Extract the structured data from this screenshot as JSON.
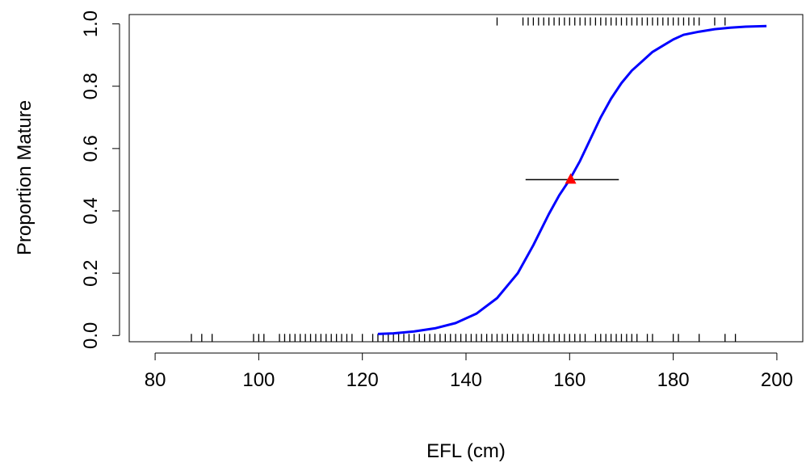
{
  "chart_data": {
    "type": "line",
    "title": "",
    "xlabel": "EFL (cm)",
    "ylabel": "Proportion Mature",
    "xlim": [
      75,
      205
    ],
    "ylim": [
      -0.02,
      1.03
    ],
    "x_ticks": [
      80,
      100,
      120,
      140,
      160,
      180,
      200
    ],
    "x_tick_labels": [
      "80",
      "100",
      "120",
      "140",
      "160",
      "180",
      "200"
    ],
    "y_ticks": [
      0,
      0.2,
      0.4,
      0.6,
      0.8,
      1.0
    ],
    "y_tick_labels": [
      "0.0",
      "0.2",
      "0.4",
      "0.6",
      "0.8",
      "1.0"
    ],
    "grid": false,
    "series": [
      {
        "type": "line",
        "color": "#0000ff",
        "x": [
          123,
          126,
          130,
          134,
          138,
          142,
          146,
          150,
          153,
          156,
          158,
          160,
          162,
          164,
          166,
          168,
          170,
          172,
          174,
          176,
          178,
          180,
          182,
          185,
          188,
          191,
          194,
          198
        ],
        "y": [
          0.005,
          0.007,
          0.013,
          0.023,
          0.04,
          0.07,
          0.12,
          0.2,
          0.29,
          0.39,
          0.45,
          0.5,
          0.56,
          0.63,
          0.7,
          0.76,
          0.81,
          0.85,
          0.88,
          0.91,
          0.93,
          0.95,
          0.965,
          0.975,
          0.983,
          0.988,
          0.991,
          0.993
        ]
      }
    ],
    "l50": {
      "x": 160.2,
      "y": 0.5,
      "ci": [
        151.5,
        169.5
      ],
      "marker": "triangle",
      "marker_color": "#ff0000",
      "line_color": "#000000"
    },
    "rug_immature": {
      "y": 0,
      "x": [
        87,
        89,
        91,
        99,
        100,
        101,
        104,
        105,
        106,
        107,
        108,
        109,
        110,
        111,
        112,
        113,
        114,
        115,
        116,
        117,
        118,
        120,
        122,
        123,
        124,
        125,
        126,
        127,
        128,
        129,
        130,
        131,
        132,
        133,
        134,
        135,
        136,
        137,
        138,
        139,
        140,
        141,
        142,
        143,
        144,
        145,
        146,
        147,
        148,
        149,
        150,
        151,
        152,
        153,
        154,
        155,
        156,
        157,
        158,
        159,
        160,
        161,
        162,
        163,
        165,
        166,
        167,
        168,
        169,
        170,
        171,
        172,
        173,
        175,
        176,
        180,
        181,
        185,
        190,
        192
      ]
    },
    "rug_mature": {
      "y": 1,
      "x": [
        146,
        151,
        152,
        153,
        154,
        155,
        156,
        157,
        158,
        159,
        160,
        161,
        162,
        163,
        164,
        165,
        166,
        167,
        168,
        169,
        170,
        171,
        172,
        173,
        174,
        175,
        176,
        177,
        178,
        179,
        180,
        181,
        182,
        183,
        184,
        185,
        188,
        190
      ]
    }
  }
}
